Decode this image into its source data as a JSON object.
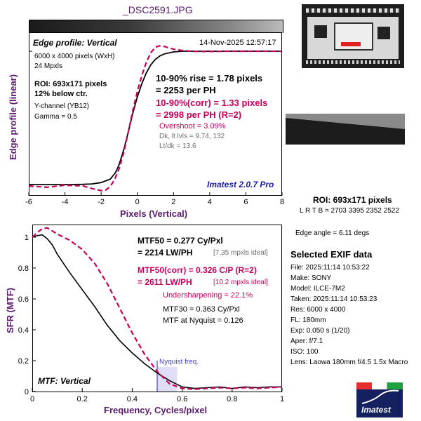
{
  "colors": {
    "accent": "#5a1a6e",
    "corrected": "#c8005a",
    "measured": "#000000",
    "ideal_note": "#6e6e6e",
    "nyquist": "#4040d0",
    "brand": "#1a1aa8"
  },
  "header": {
    "filename": "_DSC2591.JPG"
  },
  "edge_panel": {
    "title": "Edge profile: Vertical",
    "timestamp": "14-Nov-2025 12:57:17",
    "info": [
      "6000 x 4000 pixels (WxH)",
      "24 Mpxls"
    ],
    "roi": [
      "ROI: 693x171 pixels",
      "12% below ctr."
    ],
    "channel": [
      "Y-channel  (YB12)",
      "Gamma = 0.5"
    ],
    "rise": [
      "10-90% rise = 1.78 pixels",
      "= 2253 per PH"
    ],
    "rise_corr": [
      "10-90%(corr) = 1.33 pixels",
      "= 2998 per PH  (R=2)"
    ],
    "overshoot": "Overshoot = 3.09%",
    "levels": [
      "Dk, lt lvls = 9.74, 132",
      "Lt/dk = 13.6"
    ],
    "brand": "Imatest 2.0.7 Pro",
    "ylabel": "Edge profile (linear)",
    "xlabel": "Pixels (Vertical)"
  },
  "mtf_panel": {
    "title": "MTF: Vertical",
    "mtf50": [
      "MTF50 = 0.277 Cy/Pxl",
      "= 2214 LW/PH"
    ],
    "mtf50_ideal": "[7.35 mpxls ideal]",
    "mtf50_corr": [
      "MTF50(corr) = 0.326 C/P  (R=2)",
      "= 2611 LW/PH"
    ],
    "mtf50_corr_ideal": "[10.2 mpxls ideal]",
    "undersharpening": "Undersharpening = 22.1%",
    "mtf30": "MTF30 = 0.363 Cy/Pxl",
    "nyquist_mtf": "MTF at Nyquist = 0.126",
    "nyquist_label": "Nyquist freq.",
    "ylabel": "SFR (MTF)",
    "xlabel": "Frequency, Cycles/pixel"
  },
  "side": {
    "roi_title": "ROI: 693x171 pixels",
    "roi_coords": "L R  T B = 2703 3395  2352 2522",
    "edge_angle": "Edge angle = 6.11 degs",
    "exif_title": "Selected EXIF data",
    "exif": [
      "File:  2025:11:14 10:53:22",
      "Make:  SONY",
      "Model:  ILCE-7M2",
      "Taken:  2025:11:14 10:53:23",
      "Res:   6000 x 4000",
      "FL:   180mm",
      "Exp:   0.050 s  (1/20)",
      "Aper:   f/7.1",
      "ISO:   100",
      "Lens:  Laowa 180mm f/4.5 1.5x Macro"
    ],
    "logo_text": "Imatest"
  },
  "chart_data": [
    {
      "type": "line",
      "title": "Edge profile: Vertical",
      "xlabel": "Pixels (Vertical)",
      "ylabel": "Edge profile (linear)",
      "xlim": [
        -6,
        8
      ],
      "xticks": [
        -6,
        -4,
        -2,
        0,
        2,
        4,
        6,
        8
      ],
      "series": [
        {
          "style": "solid",
          "x": [
            -6,
            -5,
            -4,
            -3,
            -2.5,
            -2,
            -1.5,
            -1.2,
            -1,
            -0.75,
            -0.5,
            -0.25,
            0,
            0.25,
            0.5,
            0.75,
            1,
            1.25,
            1.5,
            2,
            2.5,
            3,
            3.5,
            4,
            5,
            6,
            7,
            8
          ],
          "y": [
            0.01,
            0.01,
            0.01,
            0.012,
            0.015,
            0.025,
            0.05,
            0.1,
            0.16,
            0.27,
            0.4,
            0.54,
            0.66,
            0.76,
            0.84,
            0.9,
            0.94,
            0.965,
            0.98,
            0.995,
            1.0,
            1.0,
            1.0,
            1.0,
            1.0,
            1.0,
            1.0,
            1.0
          ]
        },
        {
          "style": "dashed",
          "x": [
            -6,
            -5,
            -4,
            -3,
            -2.5,
            -2,
            -1.75,
            -1.5,
            -1.25,
            -1,
            -0.75,
            -0.5,
            -0.25,
            0,
            0.25,
            0.5,
            0.75,
            1,
            1.25,
            1.5,
            1.75,
            2,
            2.5,
            3,
            3.5,
            4,
            5,
            6,
            7,
            8
          ],
          "y": [
            0.0,
            -0.01,
            0.005,
            0.0,
            -0.02,
            -0.035,
            -0.03,
            -0.005,
            0.05,
            0.13,
            0.25,
            0.4,
            0.56,
            0.7,
            0.82,
            0.92,
            0.99,
            1.03,
            1.04,
            1.035,
            1.025,
            1.015,
            1.005,
            1.0,
            0.998,
            0.998,
            1.0,
            1.0,
            1.0,
            1.0
          ]
        }
      ]
    },
    {
      "type": "line",
      "title": "MTF: Vertical",
      "xlabel": "Frequency, Cycles/pixel",
      "ylabel": "SFR (MTF)",
      "xlim": [
        0,
        1
      ],
      "ylim": [
        0,
        1.05
      ],
      "xticks": [
        0,
        0.2,
        0.4,
        0.6,
        0.8,
        1
      ],
      "yticks": [
        0,
        0.2,
        0.4,
        0.6,
        0.8,
        1
      ],
      "nyquist": 0.5,
      "series": [
        {
          "style": "solid",
          "x": [
            0,
            0.02,
            0.04,
            0.06,
            0.08,
            0.1,
            0.15,
            0.2,
            0.25,
            0.3,
            0.35,
            0.4,
            0.45,
            0.5,
            0.55,
            0.6,
            0.65,
            0.7,
            0.75,
            0.8,
            0.85,
            0.9,
            0.95,
            1.0
          ],
          "y": [
            1.0,
            1.01,
            1.015,
            0.99,
            0.95,
            0.89,
            0.77,
            0.66,
            0.55,
            0.43,
            0.33,
            0.25,
            0.18,
            0.12,
            0.07,
            0.03,
            0.02,
            0.025,
            0.03,
            0.02,
            0.03,
            0.025,
            0.03,
            0.03
          ]
        },
        {
          "style": "dashed",
          "x": [
            0,
            0.02,
            0.04,
            0.06,
            0.08,
            0.1,
            0.15,
            0.2,
            0.25,
            0.3,
            0.35,
            0.4,
            0.45,
            0.5,
            0.55,
            0.6,
            0.65,
            0.7,
            0.75,
            0.8,
            0.85,
            0.9,
            0.95,
            1.0
          ],
          "y": [
            1.0,
            1.03,
            1.055,
            1.06,
            1.04,
            1.02,
            0.98,
            0.92,
            0.83,
            0.7,
            0.54,
            0.38,
            0.24,
            0.13,
            0.05,
            0.02,
            0.015,
            0.02,
            0.025,
            0.02,
            0.025,
            0.02,
            0.025,
            0.03
          ]
        }
      ]
    }
  ]
}
